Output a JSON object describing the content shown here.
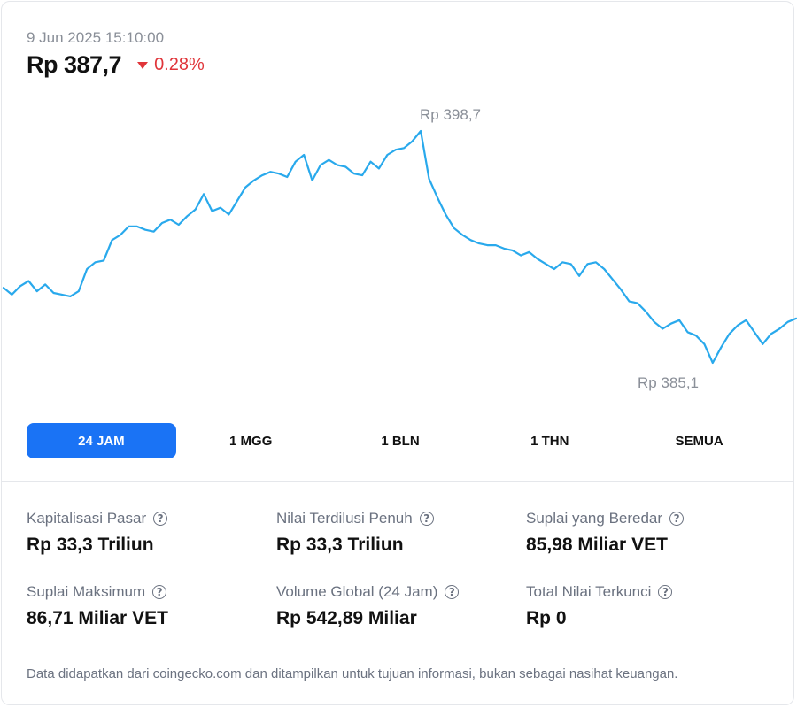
{
  "header": {
    "timestamp": "9 Jun 2025 15:10:00",
    "price": "Rp 387,7",
    "change": "0.28%",
    "change_direction": "down",
    "down_color": "#e0353a"
  },
  "chart_data": {
    "type": "line",
    "title": "",
    "xlabel": "",
    "ylabel": "",
    "line_color": "#29a9ec",
    "max_label": "Rp 398,7",
    "min_label": "Rp 385,1",
    "ylim": [
      385.1,
      398.7
    ],
    "values": [
      389.5,
      389.1,
      389.6,
      389.9,
      389.3,
      389.7,
      389.2,
      389.1,
      389.0,
      389.3,
      390.6,
      391.0,
      391.1,
      392.3,
      392.6,
      393.1,
      393.1,
      392.9,
      392.8,
      393.3,
      393.5,
      393.2,
      393.7,
      394.1,
      395.0,
      394.0,
      394.2,
      393.8,
      394.6,
      395.4,
      395.8,
      396.1,
      396.3,
      396.2,
      396.0,
      396.9,
      397.3,
      395.8,
      396.7,
      397.0,
      396.7,
      396.6,
      396.2,
      396.1,
      396.9,
      396.5,
      397.3,
      397.6,
      397.7,
      398.1,
      398.7,
      395.9,
      394.8,
      393.8,
      393.0,
      392.6,
      392.3,
      392.1,
      392.0,
      392.0,
      391.8,
      391.7,
      391.4,
      391.6,
      391.2,
      390.9,
      390.6,
      391.0,
      390.9,
      390.2,
      390.9,
      391.0,
      390.6,
      390.0,
      389.4,
      388.7,
      388.6,
      388.1,
      387.5,
      387.1,
      387.4,
      387.6,
      386.9,
      386.7,
      386.2,
      385.1,
      386.0,
      386.8,
      387.3,
      387.6,
      386.9,
      386.2,
      386.8,
      387.1,
      387.5,
      387.7
    ]
  },
  "timeframes": [
    "24 JAM",
    "1 MGG",
    "1 BLN",
    "1 THN",
    "SEMUA"
  ],
  "active_timeframe": "24 JAM",
  "accent_color": "#1a73f5",
  "stats": [
    {
      "label": "Kapitalisasi Pasar",
      "value": "Rp 33,3 Triliun"
    },
    {
      "label": "Nilai Terdilusi Penuh",
      "value": "Rp 33,3 Triliun"
    },
    {
      "label": "Suplai yang Beredar",
      "value": "85,98 Miliar VET"
    },
    {
      "label": "Suplai Maksimum",
      "value": "86,71 Miliar VET"
    },
    {
      "label": "Volume Global (24 Jam)",
      "value": "Rp 542,89 Miliar"
    },
    {
      "label": "Total Nilai Terkunci",
      "value": "Rp 0"
    }
  ],
  "help_icon": "?",
  "footer": "Data didapatkan dari coingecko.com dan ditampilkan untuk tujuan informasi, bukan sebagai nasihat keuangan."
}
